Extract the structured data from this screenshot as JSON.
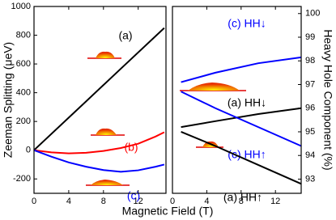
{
  "chart_data": [
    {
      "type": "line",
      "x_label": "Magnetic Field (T)",
      "y_label": "Zeeman Splitting (μeV)",
      "xlim": [
        0,
        15.2
      ],
      "ylim": [
        -300,
        1000
      ],
      "xticks": [
        0,
        4,
        8,
        12
      ],
      "yticks": [
        -200,
        0,
        200,
        400,
        600,
        800,
        1000
      ],
      "series": [
        {
          "name": "(a)",
          "color": "#000000",
          "x": [
            0,
            5,
            10,
            15
          ],
          "values": [
            0,
            283,
            567,
            850
          ]
        },
        {
          "name": "(b)",
          "color": "#ff0000",
          "x": [
            0,
            2,
            4,
            6,
            8,
            10,
            12,
            14,
            15
          ],
          "values": [
            0,
            -15,
            -22,
            -18,
            -5,
            15,
            45,
            95,
            125
          ]
        },
        {
          "name": "(c)",
          "color": "#0000ff",
          "x": [
            0,
            2,
            4,
            6,
            8,
            10,
            12,
            14,
            15
          ],
          "values": [
            0,
            -45,
            -85,
            -115,
            -138,
            -150,
            -140,
            -115,
            -100
          ]
        }
      ]
    },
    {
      "type": "line",
      "y_label": "Heavy Hole Component (%)",
      "xlim": [
        0,
        15
      ],
      "ylim": [
        92.4,
        100.3
      ],
      "xticks": [
        0,
        4,
        8,
        12
      ],
      "yticks": [
        93,
        94,
        95,
        96,
        97,
        98,
        99,
        100
      ],
      "series": [
        {
          "name": "(c) HH↓",
          "color": "#0000ff",
          "x": [
            1,
            5,
            10,
            15
          ],
          "values": [
            97.1,
            97.5,
            97.9,
            98.15
          ]
        },
        {
          "name": "(a) HH↓",
          "color": "#000000",
          "x": [
            1,
            5,
            10,
            15
          ],
          "values": [
            95.2,
            95.45,
            95.75,
            96.0
          ]
        },
        {
          "name": "(c) HH↑",
          "color": "#0000ff",
          "x": [
            1,
            5,
            10,
            15
          ],
          "values": [
            96.7,
            96.0,
            95.2,
            94.4
          ]
        },
        {
          "name": "(a) HH↑",
          "color": "#000000",
          "x": [
            1,
            5,
            10,
            15
          ],
          "values": [
            95.0,
            94.4,
            93.6,
            92.8
          ]
        }
      ]
    }
  ]
}
